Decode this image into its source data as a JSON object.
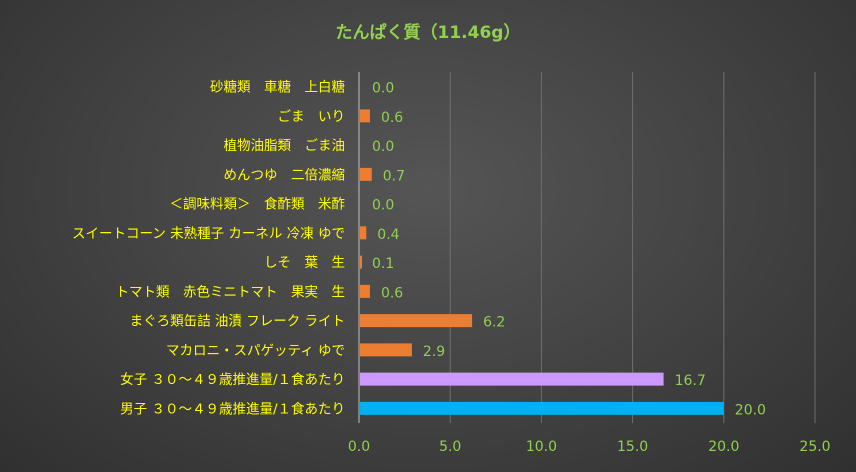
{
  "chart_data": {
    "type": "bar",
    "orientation": "horizontal",
    "title": "たんぱく質（11.46g）",
    "categories": [
      "砂糖類　車糖　上白糖",
      "ごま　いり",
      "植物油脂類　ごま油",
      "めんつゆ　二倍濃縮",
      "＜調味料類＞　食酢類　米酢",
      "スイートコーン 未熟種子 カーネル 冷凍 ゆで",
      "しそ　葉　生",
      "トマト類　赤色ミニトマト　果実　生",
      "まぐろ類缶詰 油漬 フレーク ライト",
      "マカロニ・スパゲッティ ゆで",
      "女子 ３０～４９歳推進量/１食あたり",
      "男子 ３０～４９歳推進量/１食あたり"
    ],
    "values": [
      0.0,
      0.6,
      0.0,
      0.7,
      0.0,
      0.4,
      0.1,
      0.6,
      6.2,
      2.9,
      16.7,
      20.0
    ],
    "value_labels": [
      "0.0",
      "0.6",
      "0.0",
      "0.7",
      "0.0",
      "0.4",
      "0.1",
      "0.6",
      "6.2",
      "2.9",
      "16.7",
      "20.0"
    ],
    "bar_colors": [
      "#ED7D31",
      "#ED7D31",
      "#ED7D31",
      "#ED7D31",
      "#ED7D31",
      "#ED7D31",
      "#ED7D31",
      "#ED7D31",
      "#ED7D31",
      "#ED7D31",
      "#CC99FF",
      "#00B0F0"
    ],
    "xlim": [
      0,
      25
    ],
    "xticks": [
      "0.0",
      "5.0",
      "10.0",
      "15.0",
      "20.0",
      "25.0"
    ],
    "xtick_values": [
      0,
      5,
      10,
      15,
      20,
      25
    ],
    "grid": true,
    "colors": {
      "title": "#92D050",
      "category_label": "#FFFF00",
      "value_label": "#92D050",
      "tick_label": "#92D050",
      "gridline": "#6E6E6E",
      "axis_line": "#BFBFBF"
    }
  }
}
